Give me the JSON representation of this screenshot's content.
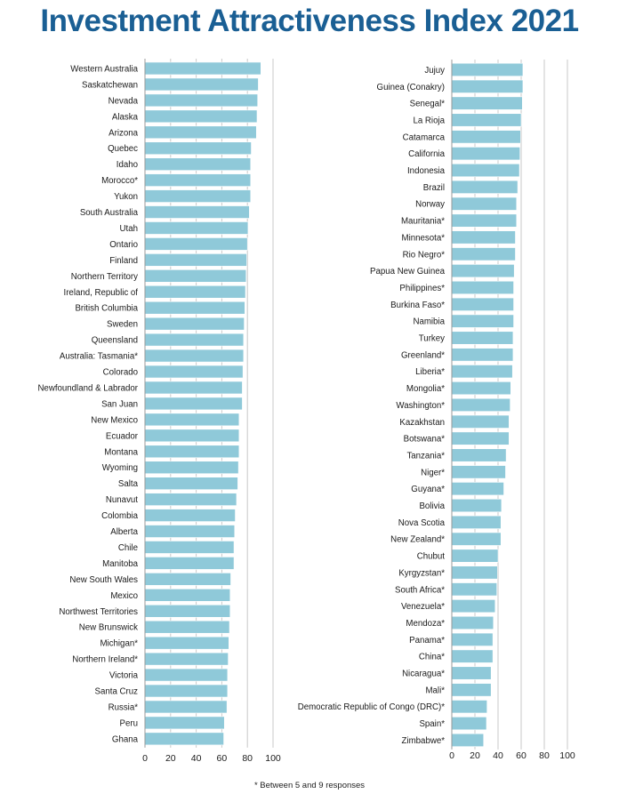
{
  "title": "Investment Attractiveness Index 2021",
  "footnote": "* Between 5 and 9 responses",
  "colors": {
    "bar": "#8fc9d9",
    "bar_edge": "#ffffff",
    "grid": "#c8c8c8",
    "title": "#1a5f94"
  },
  "chart_data": [
    {
      "type": "bar",
      "orientation": "horizontal",
      "xlim": [
        0,
        100
      ],
      "xticks": [
        "0",
        "20",
        "40",
        "60",
        "80",
        "100"
      ],
      "categories": [
        "Western Australia",
        "Saskatchewan",
        "Nevada",
        "Alaska",
        "Arizona",
        "Quebec",
        "Idaho",
        "Morocco*",
        "Yukon",
        "South Australia",
        "Utah",
        "Ontario",
        "Finland",
        "Northern Territory",
        "Ireland, Republic of",
        "British Columbia",
        "Sweden",
        "Queensland",
        "Australia: Tasmania*",
        "Colorado",
        "Newfoundland & Labrador",
        "San Juan",
        "New Mexico",
        "Ecuador",
        "Montana",
        "Wyoming",
        "Salta",
        "Nunavut",
        "Colombia",
        "Alberta",
        "Chile",
        "Manitoba",
        "New South Wales",
        "Mexico",
        "Northwest Territories",
        "New Brunswick",
        "Michigan*",
        "Northern Ireland*",
        "Victoria",
        "Santa Cruz",
        "Russia*",
        "Peru",
        "Ghana"
      ],
      "values": [
        90.5,
        88.5,
        88,
        87.5,
        87,
        83,
        82.5,
        82.5,
        82.5,
        81.5,
        80.5,
        80,
        79.5,
        79,
        78.5,
        78,
        77.5,
        77,
        77,
        76.5,
        76,
        76,
        73.5,
        73.5,
        73.5,
        73,
        72.5,
        71.5,
        70.5,
        70,
        69.5,
        69.5,
        67,
        66.5,
        66.5,
        66,
        65.5,
        65,
        64.5,
        64.5,
        64,
        62,
        61.5
      ]
    },
    {
      "type": "bar",
      "orientation": "horizontal",
      "xlim": [
        0,
        100
      ],
      "xticks": [
        "0",
        "20",
        "40",
        "60",
        "80",
        "100"
      ],
      "categories": [
        "Jujuy",
        "Guinea (Conakry)",
        "Senegal*",
        "La Rioja",
        "Catamarca",
        "California",
        "Indonesia",
        "Brazil",
        "Norway",
        "Mauritania*",
        "Minnesota*",
        "Rio Negro*",
        "Papua New Guinea",
        "Philippines*",
        "Burkina Faso*",
        "Namibia",
        "Turkey",
        "Greenland*",
        "Liberia*",
        "Mongolia*",
        "Washington*",
        "Kazakhstan",
        "Botswana*",
        "Tanzania*",
        "Niger*",
        "Guyana*",
        "Bolivia",
        "Nova Scotia",
        "New Zealand*",
        "Chubut",
        "Kyrgyzstan*",
        "South Africa*",
        "Venezuela*",
        "Mendoza*",
        "Panama*",
        "China*",
        "Nicaragua*",
        "Mali*",
        "Democratic Republic of Congo (DRC)*",
        "Spain*",
        "Zimbabwe*"
      ],
      "values": [
        61.5,
        61.5,
        61,
        60,
        59.5,
        59,
        58.5,
        57,
        56,
        56,
        55,
        55,
        54,
        53.5,
        53.5,
        53.5,
        53,
        53,
        52.5,
        51,
        50.5,
        49.5,
        49.5,
        47,
        46.5,
        45,
        43,
        42.5,
        42.5,
        40,
        39.5,
        39,
        37.5,
        36,
        35.5,
        35.5,
        34,
        34,
        30.5,
        30,
        27.5
      ]
    }
  ]
}
